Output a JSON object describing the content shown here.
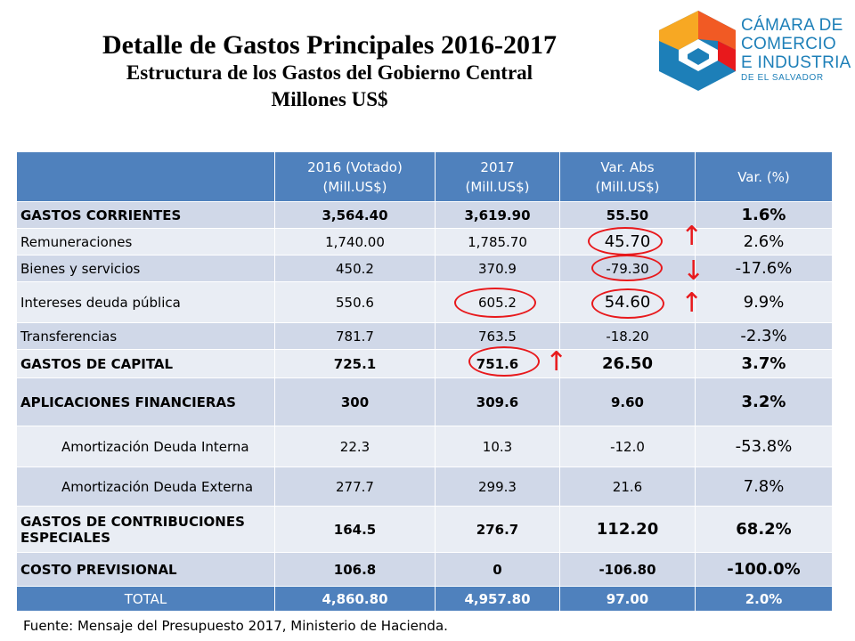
{
  "title": "Detalle de Gastos Principales 2016-2017",
  "subtitle": "Estructura de los Gastos del Gobierno Central",
  "units": "Millones US$",
  "logo": {
    "line1": "CÁMARA DE",
    "line2": "COMERCIO",
    "line3": "E INDUSTRIA",
    "line4": "DE EL SALVADOR",
    "colors": [
      "#1d7fb8",
      "#e8191c",
      "#f7a823",
      "#f15a24"
    ]
  },
  "table": {
    "headers": [
      "",
      "2016 (Votado) (Mill.US$)",
      "2017 (Mill.US$)",
      "Var. Abs (Mill.US$)",
      "Var. (%)"
    ],
    "header_lines": {
      "h1a": "2016 (Votado)",
      "h1b": "(Mill.US$)",
      "h2a": "2017",
      "h2b": "(Mill.US$)",
      "h3a": "Var. Abs",
      "h3b": "(Mill.US$)",
      "h4": "Var. (%)"
    },
    "rows": [
      {
        "label": "GASTOS CORRIENTES",
        "v2016": "3,564.40",
        "v2017": "3,619.90",
        "abs": "55.50",
        "pct": "1.6%"
      },
      {
        "label": "Remuneraciones",
        "v2016": "1,740.00",
        "v2017": "1,785.70",
        "abs": "45.70",
        "pct": "2.6%"
      },
      {
        "label": "Bienes y servicios",
        "v2016": "450.2",
        "v2017": "370.9",
        "abs": "-79.30",
        "pct": "-17.6%"
      },
      {
        "label": "Intereses deuda pública",
        "v2016": "550.6",
        "v2017": "605.2",
        "abs": "54.60",
        "pct": "9.9%"
      },
      {
        "label": "Transferencias",
        "v2016": "781.7",
        "v2017": "763.5",
        "abs": "-18.20",
        "pct": "-2.3%"
      },
      {
        "label": "GASTOS DE CAPITAL",
        "v2016": "725.1",
        "v2017": "751.6",
        "abs": "26.50",
        "pct": "3.7%"
      },
      {
        "label": "APLICACIONES FINANCIERAS",
        "v2016": "300",
        "v2017": "309.6",
        "abs": "9.60",
        "pct": "3.2%"
      },
      {
        "label": "Amortización Deuda Interna",
        "v2016": "22.3",
        "v2017": "10.3",
        "abs": "-12.0",
        "pct": "-53.8%"
      },
      {
        "label": "Amortización Deuda Externa",
        "v2016": "277.7",
        "v2017": "299.3",
        "abs": "21.6",
        "pct": "7.8%"
      },
      {
        "label": "GASTOS DE CONTRIBUCIONES ESPECIALES",
        "v2016": "164.5",
        "v2017": "276.7",
        "abs": "112.20",
        "pct": "68.2%"
      },
      {
        "label": "COSTO PREVISIONAL",
        "v2016": "106.8",
        "v2017": "0",
        "abs": "-106.80",
        "pct": "-100.0%"
      }
    ],
    "total": {
      "label": "TOTAL",
      "v2016": "4,860.80",
      "v2017": "4,957.80",
      "abs": "97.00",
      "pct": "2.0%"
    }
  },
  "annotations": {
    "arrow_up": "↑",
    "arrow_down": "↓",
    "highlight_color": "#e8191c"
  },
  "source": "Fuente: Mensaje del Presupuesto 2017,  Ministerio de Hacienda."
}
